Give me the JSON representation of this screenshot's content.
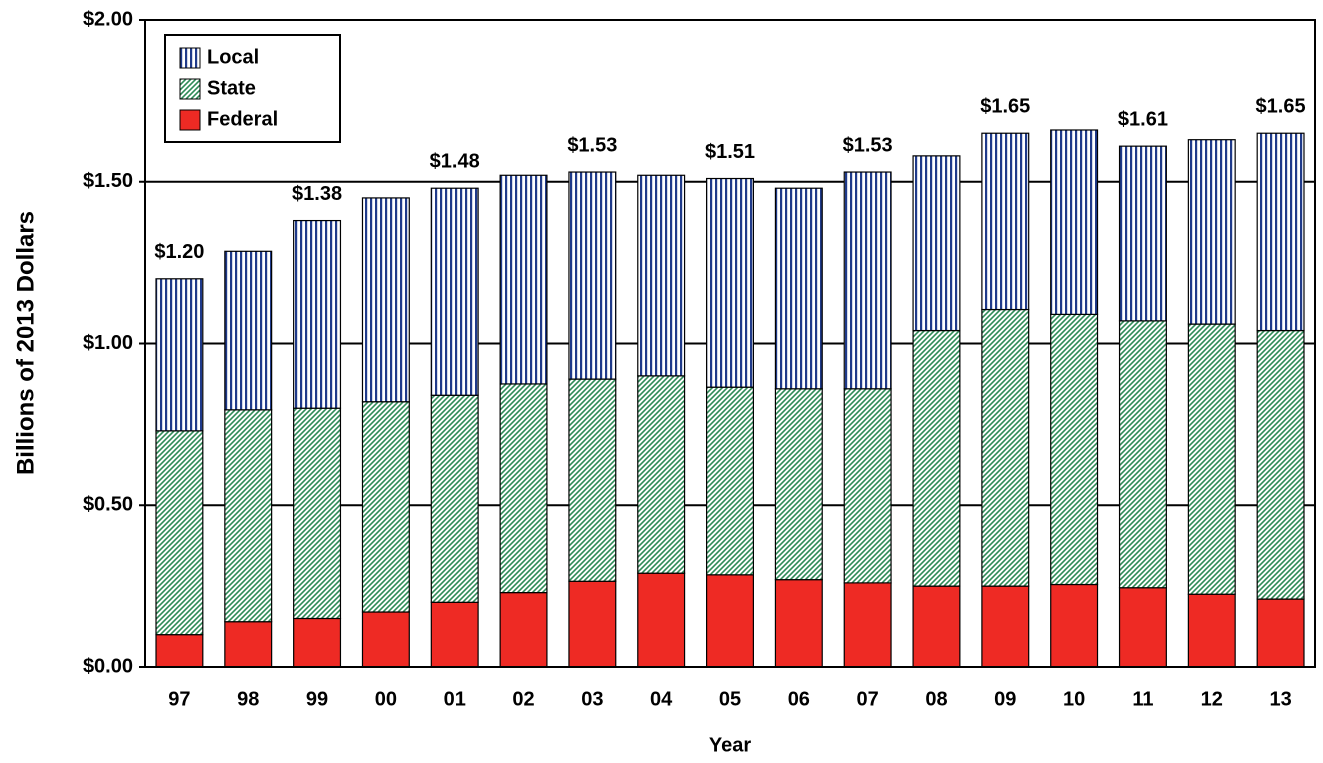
{
  "chart_data": {
    "type": "stacked_bar",
    "ylabel": "Billions of 2013 Dollars",
    "xlabel": "Year",
    "categories": [
      "97",
      "98",
      "99",
      "00",
      "01",
      "02",
      "03",
      "04",
      "05",
      "06",
      "07",
      "08",
      "09",
      "10",
      "11",
      "12",
      "13"
    ],
    "series": [
      {
        "name": "Federal",
        "color": "#ee2a24",
        "values": [
          0.1,
          0.14,
          0.15,
          0.17,
          0.2,
          0.23,
          0.265,
          0.29,
          0.285,
          0.27,
          0.26,
          0.25,
          0.25,
          0.255,
          0.245,
          0.225,
          0.21
        ]
      },
      {
        "name": "State",
        "color": "#2e8b57",
        "values": [
          0.63,
          0.655,
          0.65,
          0.65,
          0.64,
          0.645,
          0.625,
          0.61,
          0.58,
          0.59,
          0.6,
          0.79,
          0.855,
          0.835,
          0.825,
          0.835,
          0.83
        ]
      },
      {
        "name": "Local",
        "color": "#1f3a8a",
        "values": [
          0.47,
          0.49,
          0.58,
          0.63,
          0.64,
          0.645,
          0.64,
          0.62,
          0.645,
          0.62,
          0.67,
          0.54,
          0.545,
          0.57,
          0.54,
          0.57,
          0.61
        ]
      }
    ],
    "total_labels": [
      "$1.20",
      null,
      "$1.38",
      null,
      "$1.48",
      null,
      "$1.53",
      null,
      "$1.51",
      null,
      "$1.53",
      null,
      "$1.65",
      null,
      "$1.61",
      null,
      "$1.65"
    ],
    "ylim": [
      0,
      2
    ],
    "yticks": [
      {
        "value": 0,
        "label": "$0.00"
      },
      {
        "value": 0.5,
        "label": "$0.50"
      },
      {
        "value": 1,
        "label": "$1.00"
      },
      {
        "value": 1.5,
        "label": "$1.50"
      },
      {
        "value": 2,
        "label": "$2.00"
      }
    ],
    "grid": true,
    "legend": "upper left"
  }
}
